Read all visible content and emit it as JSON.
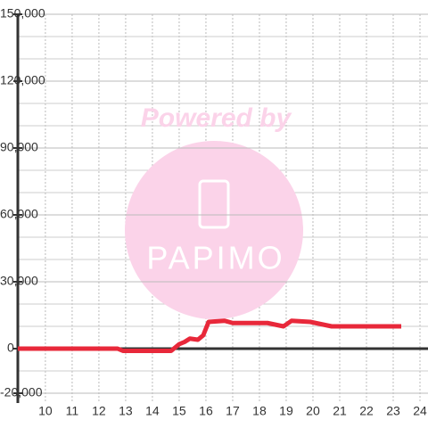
{
  "chart_data": {
    "type": "line",
    "watermark": [
      "Powered by",
      "PAPIMO"
    ],
    "xlim": [
      8.97,
      24.3
    ],
    "xticks": [
      10,
      11,
      12,
      13,
      14,
      15,
      16,
      17,
      18,
      19,
      20,
      21,
      22,
      23,
      24
    ],
    "ylim": [
      -20000,
      150000
    ],
    "yticks": [
      {
        "value": -20000,
        "label": "-20,000"
      },
      0,
      {
        "value": 30000,
        "label": "30,000"
      },
      {
        "value": 60000,
        "label": "60,000"
      },
      {
        "value": 90000,
        "label": "90,000"
      },
      {
        "value": 120000,
        "label": "120,000"
      },
      {
        "value": 150000,
        "label": "150,000"
      }
    ],
    "yminor": [
      -10000,
      10000,
      20000,
      40000,
      50000,
      70000,
      80000,
      100000,
      110000,
      130000,
      140000
    ],
    "grid": true,
    "series": [
      {
        "color": "#e8283a",
        "x": [
          8.97,
          12.7,
          12.9,
          14.7,
          15.0,
          15.2,
          15.4,
          15.7,
          15.9,
          16.1,
          16.7,
          17.0,
          18.3,
          18.9,
          19.2,
          19.9,
          20.3,
          20.7,
          23.3
        ],
        "values": [
          0,
          0,
          -1000,
          -1000,
          2000,
          3000,
          4500,
          4000,
          6000,
          12000,
          12500,
          11500,
          11500,
          10000,
          12500,
          12000,
          11000,
          10000,
          10000
        ]
      }
    ]
  }
}
